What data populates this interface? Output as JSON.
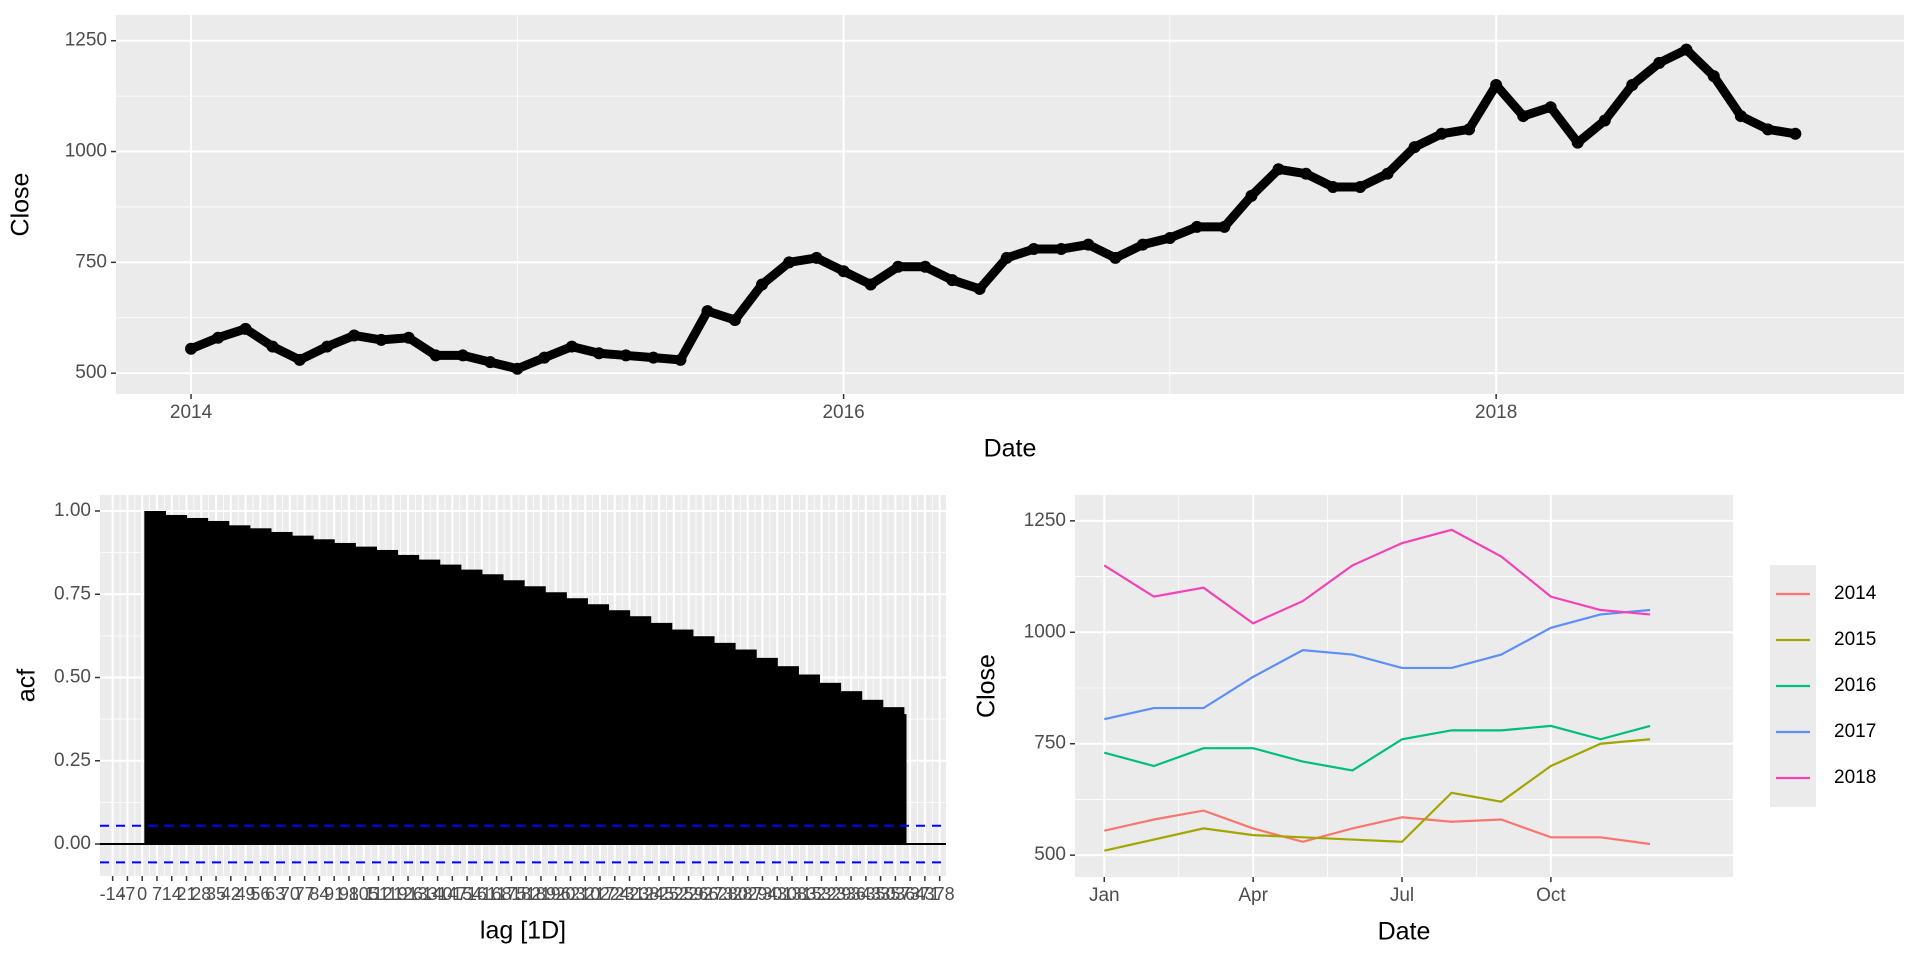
{
  "chart_data": [
    {
      "type": "scatter",
      "x_label": "Date",
      "y_label": "Close",
      "color": "#000000",
      "grid": true,
      "xlim": [
        2013.77,
        2019.25
      ],
      "xticks": [
        2014,
        2016,
        2018
      ],
      "ylim": [
        453,
        1308
      ],
      "yticks": [
        500,
        750,
        1000,
        1250
      ],
      "x": [
        2014,
        2014.083,
        2014.167,
        2014.25,
        2014.333,
        2014.417,
        2014.5,
        2014.583,
        2014.667,
        2014.75,
        2014.833,
        2014.917,
        2015,
        2015.083,
        2015.167,
        2015.25,
        2015.333,
        2015.417,
        2015.5,
        2015.583,
        2015.667,
        2015.75,
        2015.833,
        2015.917,
        2016,
        2016.083,
        2016.167,
        2016.25,
        2016.333,
        2016.417,
        2016.5,
        2016.583,
        2016.667,
        2016.75,
        2016.833,
        2016.917,
        2017,
        2017.083,
        2017.167,
        2017.25,
        2017.333,
        2017.417,
        2017.5,
        2017.583,
        2017.667,
        2017.75,
        2017.833,
        2017.917,
        2018,
        2018.083,
        2018.167,
        2018.25,
        2018.333,
        2018.417,
        2018.5,
        2018.583,
        2018.667,
        2018.75,
        2018.833,
        2018.917
      ],
      "values": [
        555,
        580,
        600,
        560,
        530,
        560,
        585,
        575,
        580,
        540,
        540,
        525,
        510,
        535,
        560,
        545,
        540,
        535,
        530,
        640,
        620,
        700,
        750,
        760,
        730,
        700,
        740,
        740,
        710,
        690,
        760,
        780,
        780,
        790,
        760,
        790,
        805,
        830,
        830,
        900,
        960,
        950,
        920,
        920,
        950,
        1010,
        1040,
        1050,
        1150,
        1080,
        1100,
        1020,
        1070,
        1150,
        1200,
        1230,
        1170,
        1080,
        1050,
        1040
      ]
    },
    {
      "type": "bar",
      "x_label": "lag [1D]",
      "y_label": "acf",
      "color": "#000000",
      "ci_color": "#0000FF",
      "grid": true,
      "ci": 0.055,
      "xlim": [
        -20,
        381
      ],
      "xticks": [
        -14,
        -7,
        0,
        7,
        14,
        21,
        28,
        35,
        42,
        49,
        56,
        63,
        70,
        77,
        84,
        91,
        98,
        105,
        112,
        119,
        126,
        133,
        140,
        147,
        154,
        161,
        168,
        175,
        182,
        189,
        196,
        203,
        210,
        217,
        224,
        231,
        238,
        245,
        252,
        259,
        266,
        273,
        280,
        287,
        294,
        301,
        308,
        315,
        322,
        329,
        336,
        343,
        350,
        357,
        364,
        371,
        378
      ],
      "ylim": [
        -0.096,
        1.048
      ],
      "yticks": [
        {
          "value": 0,
          "label": "0.00"
        },
        {
          "value": 0.25,
          "label": "0.25"
        },
        {
          "value": 0.5,
          "label": "0.50"
        },
        {
          "value": 0.75,
          "label": "0.75"
        },
        {
          "value": 1,
          "label": "1.00"
        }
      ],
      "x": [
        1,
        11,
        21,
        31,
        41,
        51,
        61,
        71,
        81,
        91,
        101,
        111,
        121,
        131,
        141,
        151,
        161,
        171,
        181,
        191,
        201,
        211,
        221,
        231,
        241,
        251,
        261,
        271,
        281,
        291,
        301,
        311,
        321,
        331,
        341,
        351,
        361
      ],
      "values": [
        1.0,
        0.988,
        0.979,
        0.97,
        0.957,
        0.948,
        0.937,
        0.926,
        0.915,
        0.904,
        0.893,
        0.883,
        0.868,
        0.854,
        0.839,
        0.824,
        0.81,
        0.792,
        0.774,
        0.756,
        0.738,
        0.72,
        0.702,
        0.684,
        0.664,
        0.644,
        0.624,
        0.604,
        0.584,
        0.559,
        0.534,
        0.509,
        0.484,
        0.459,
        0.433,
        0.411,
        0.39
      ]
    },
    {
      "type": "line",
      "x_label": "Date",
      "y_label": "Close",
      "grid": true,
      "legend": "right",
      "xlim": [
        0.41,
        13.67
      ],
      "xticks": [
        {
          "value": 1,
          "label": "Jan"
        },
        {
          "value": 4,
          "label": "Apr"
        },
        {
          "value": 7,
          "label": "Jul"
        },
        {
          "value": 10,
          "label": "Oct"
        }
      ],
      "ylim": [
        451,
        1308
      ],
      "yticks": [
        500,
        750,
        1000,
        1250
      ],
      "x": [
        1,
        2,
        3,
        4,
        5,
        6,
        7,
        8,
        9,
        10,
        11,
        12
      ],
      "series": [
        {
          "name": "2014",
          "color": "#F8766D",
          "values": [
            555,
            580,
            600,
            560,
            530,
            560,
            585,
            575,
            580,
            540,
            540,
            525
          ]
        },
        {
          "name": "2015",
          "color": "#A3A500",
          "values": [
            510,
            535,
            560,
            545,
            540,
            535,
            530,
            640,
            620,
            700,
            750,
            760
          ]
        },
        {
          "name": "2016",
          "color": "#00BF7D",
          "values": [
            730,
            700,
            740,
            740,
            710,
            690,
            760,
            780,
            780,
            790,
            760,
            790
          ]
        },
        {
          "name": "2017",
          "color": "#5E8EF7",
          "values": [
            805,
            830,
            830,
            900,
            960,
            950,
            920,
            920,
            950,
            1010,
            1040,
            1050
          ]
        },
        {
          "name": "2018",
          "color": "#F442B6",
          "values": [
            1150,
            1080,
            1100,
            1020,
            1070,
            1150,
            1200,
            1230,
            1170,
            1080,
            1050,
            1040
          ]
        }
      ]
    }
  ]
}
